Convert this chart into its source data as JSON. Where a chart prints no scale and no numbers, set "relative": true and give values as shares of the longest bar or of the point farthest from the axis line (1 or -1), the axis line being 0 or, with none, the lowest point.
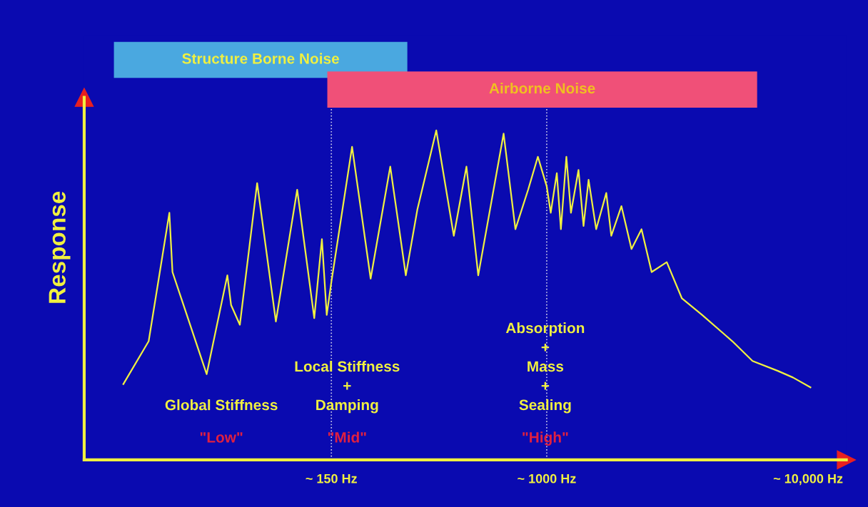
{
  "chart_data": {
    "type": "line",
    "relative": true,
    "ylabel": "Response",
    "log": "x",
    "xlim": [
      17,
      14000
    ],
    "xticks": [
      {
        "value": 150,
        "label": "~ 150 Hz"
      },
      {
        "value": 1000,
        "label": "~ 1000 Hz"
      },
      {
        "value": 10000,
        "label": "~ 10,000 Hz"
      }
    ],
    "tick_labels": "x",
    "grid": false,
    "marker": "none",
    "line_style": "solid",
    "series": [
      {
        "color": "#f0f040",
        "x": [
          24,
          30,
          36,
          37,
          50,
          60,
          62,
          67,
          78,
          92,
          111,
          129,
          138,
          144,
          150,
          180,
          212,
          252,
          289,
          320,
          378,
          441,
          493,
          547,
          684,
          759,
          849,
          925,
          1000,
          1036,
          1093,
          1133,
          1189,
          1238,
          1323,
          1383,
          1446,
          1546,
          1690,
          1766,
          1931,
          2110,
          2305,
          2520,
          2879,
          3290,
          3930,
          5130,
          6130,
          7660,
          8750,
          10210
        ],
        "values": [
          0.23,
          0.36,
          0.75,
          0.57,
          0.26,
          0.56,
          0.47,
          0.41,
          0.84,
          0.42,
          0.82,
          0.43,
          0.67,
          0.44,
          0.54,
          0.95,
          0.55,
          0.89,
          0.56,
          0.76,
          1.0,
          0.68,
          0.89,
          0.56,
          0.99,
          0.7,
          0.82,
          0.92,
          0.83,
          0.75,
          0.87,
          0.7,
          0.92,
          0.75,
          0.88,
          0.71,
          0.85,
          0.7,
          0.81,
          0.68,
          0.77,
          0.64,
          0.7,
          0.57,
          0.6,
          0.49,
          0.44,
          0.36,
          0.3,
          0.27,
          0.25,
          0.22
        ]
      }
    ],
    "ref_lines": [
      {
        "axis": "x",
        "value": 150,
        "color": "#c8c8e8",
        "line_style": "dotted"
      },
      {
        "axis": "x",
        "value": 1000,
        "color": "#c8c8e8",
        "line_style": "dotted"
      }
    ],
    "annotations": [
      "Structure Borne Noise",
      "Airborne Noise",
      "Global Stiffness",
      "\"Low\"",
      "Local Stiffness\n+\nDamping",
      "\"Mid\"",
      "Absorption\n+\nMass\n+\nSealing",
      "\"High\""
    ]
  }
}
